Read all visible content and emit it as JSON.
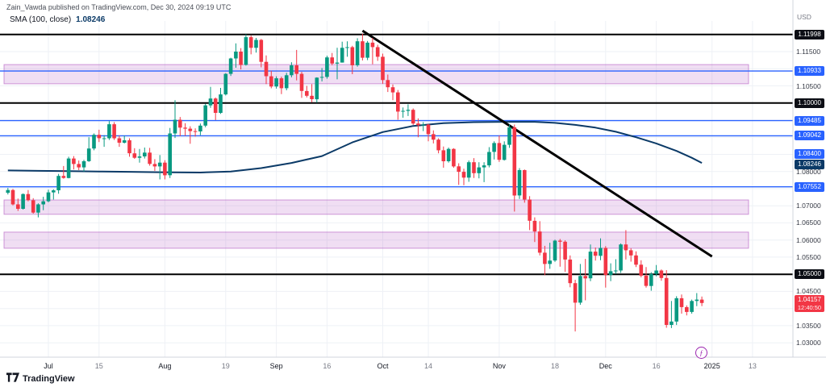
{
  "header": {
    "attribution": "Zain_Vawda published on TradingView.com, Dec 30, 2024 09:19 UTC",
    "currency_label": "USD"
  },
  "legend": {
    "indicator": "SMA (100, close)",
    "value": "1.08246"
  },
  "footer": {
    "logo_text": "TradingView"
  },
  "event": {
    "symbol": "ƒ"
  },
  "colors": {
    "up": "#089981",
    "down": "#f23645",
    "sma": "#0b3a67",
    "line_black": "#000000",
    "line_blue": "#2962ff",
    "band_fill": "rgba(186,104,200,0.22)",
    "band_border": "rgba(156,39,176,0.45)",
    "grid": "#eef1f6",
    "axis_separator": "#d1d4dc",
    "badge_red": "#f23645"
  },
  "chart_data": {
    "type": "candlestick",
    "ylim": [
      1.0258,
      1.123
    ],
    "price_ticks": [
      {
        "p": 1.115,
        "t": "1.11500"
      },
      {
        "p": 1.105,
        "t": "1.10500"
      },
      {
        "p": 1.08,
        "t": "1.08000"
      },
      {
        "p": 1.07,
        "t": "1.07000"
      },
      {
        "p": 1.065,
        "t": "1.06500"
      },
      {
        "p": 1.06,
        "t": "1.06000"
      },
      {
        "p": 1.055,
        "t": "1.05500"
      },
      {
        "p": 1.045,
        "t": "1.04500"
      },
      {
        "p": 1.035,
        "t": "1.03500"
      },
      {
        "p": 1.03,
        "t": "1.03000"
      }
    ],
    "price_badges": [
      {
        "p": 1.11998,
        "t": "1.11998",
        "type": "black"
      },
      {
        "p": 1.10933,
        "t": "1.10933",
        "type": "blue"
      },
      {
        "p": 1.1,
        "t": "1.10000",
        "type": "black"
      },
      {
        "p": 1.09485,
        "t": "1.09485",
        "type": "blue"
      },
      {
        "p": 1.09042,
        "t": "1.09042",
        "type": "blue"
      },
      {
        "p": 1.084,
        "t": "1.08400",
        "type": "blue",
        "dy": -5
      },
      {
        "p": 1.08246,
        "t": "1.08246",
        "type": "sma",
        "dy": 2
      },
      {
        "p": 1.07552,
        "t": "1.07552",
        "type": "blue"
      },
      {
        "p": 1.05,
        "t": "1.05000",
        "type": "black"
      }
    ],
    "horizontal_lines": [
      {
        "p": 1.11998,
        "c": "black"
      },
      {
        "p": 1.10933,
        "c": "blue"
      },
      {
        "p": 1.1,
        "c": "black"
      },
      {
        "p": 1.09485,
        "c": "blue"
      },
      {
        "p": 1.09042,
        "c": "blue"
      },
      {
        "p": 1.07552,
        "c": "blue"
      },
      {
        "p": 1.05,
        "c": "black"
      }
    ],
    "bands": [
      {
        "from": 1.1056,
        "to": 1.1112
      },
      {
        "from": 1.0675,
        "to": 1.0717
      },
      {
        "from": 1.0576,
        "to": 1.0623
      }
    ],
    "trendline": {
      "from_i": 70,
      "from_p": 1.1211,
      "to_i": 139,
      "to_p": 1.0552
    },
    "last_price": {
      "p": 1.04157,
      "t": "1.04157",
      "countdown": "12:40:50"
    },
    "time_ticks": [
      {
        "i": 8,
        "label": "Jul",
        "strong": true
      },
      {
        "i": 18,
        "label": "15"
      },
      {
        "i": 31,
        "label": "Aug",
        "strong": true
      },
      {
        "i": 43,
        "label": "19"
      },
      {
        "i": 53,
        "label": "Sep",
        "strong": true
      },
      {
        "i": 63,
        "label": "16"
      },
      {
        "i": 74,
        "label": "Oct",
        "strong": true
      },
      {
        "i": 83,
        "label": "14"
      },
      {
        "i": 97,
        "label": "Nov",
        "strong": true
      },
      {
        "i": 108,
        "label": "18"
      },
      {
        "i": 118,
        "label": "Dec",
        "strong": true
      },
      {
        "i": 128,
        "label": "16"
      },
      {
        "i": 139,
        "label": "2025",
        "strong": true
      },
      {
        "i": 147,
        "label": "13"
      }
    ],
    "sma": [
      [
        0,
        1.0803
      ],
      [
        6,
        1.0802
      ],
      [
        12,
        1.0801
      ],
      [
        18,
        1.08
      ],
      [
        24,
        1.0799
      ],
      [
        30,
        1.0798
      ],
      [
        38,
        1.0797
      ],
      [
        44,
        1.08
      ],
      [
        50,
        1.081
      ],
      [
        56,
        1.0825
      ],
      [
        62,
        1.0845
      ],
      [
        68,
        1.0885
      ],
      [
        74,
        1.0915
      ],
      [
        80,
        1.0933
      ],
      [
        86,
        1.0941
      ],
      [
        92,
        1.0944
      ],
      [
        98,
        1.0945
      ],
      [
        104,
        1.0945
      ],
      [
        108,
        1.0942
      ],
      [
        112,
        1.0936
      ],
      [
        116,
        1.0928
      ],
      [
        120,
        1.0916
      ],
      [
        124,
        1.09
      ],
      [
        128,
        1.0882
      ],
      [
        132,
        1.086
      ],
      [
        135,
        1.084
      ],
      [
        137,
        1.0825
      ]
    ],
    "candles": [
      [
        1.0738,
        1.0752,
        1.0733,
        1.0746
      ],
      [
        1.0746,
        1.0749,
        1.0701,
        1.0704
      ],
      [
        1.0704,
        1.0721,
        1.0685,
        1.0691
      ],
      [
        1.0691,
        1.0736,
        1.0689,
        1.0734
      ],
      [
        1.0734,
        1.0746,
        1.0713,
        1.0716
      ],
      [
        1.0716,
        1.0722,
        1.0677,
        1.068
      ],
      [
        1.068,
        1.0707,
        1.0666,
        1.0704
      ],
      [
        1.0704,
        1.0726,
        1.0687,
        1.0713
      ],
      [
        1.0713,
        1.0747,
        1.071,
        1.0739
      ],
      [
        1.0739,
        1.0748,
        1.0718,
        1.0745
      ],
      [
        1.0745,
        1.0793,
        1.0735,
        1.0787
      ],
      [
        1.0787,
        1.0816,
        1.0779,
        1.0781
      ],
      [
        1.0781,
        1.0843,
        1.078,
        1.0838
      ],
      [
        1.0838,
        1.0845,
        1.0806,
        1.0822
      ],
      [
        1.0822,
        1.0832,
        1.0804,
        1.0812
      ],
      [
        1.0812,
        1.0834,
        1.08,
        1.083
      ],
      [
        1.083,
        1.09,
        1.0828,
        1.0867
      ],
      [
        1.0867,
        1.0911,
        1.0862,
        1.0907
      ],
      [
        1.0907,
        1.0922,
        1.0886,
        1.0897
      ],
      [
        1.0897,
        1.0906,
        1.0872,
        1.0897
      ],
      [
        1.0897,
        1.0947,
        1.0892,
        1.0938
      ],
      [
        1.0938,
        1.0944,
        1.0892,
        1.0897
      ],
      [
        1.0897,
        1.0905,
        1.0872,
        1.0884
      ],
      [
        1.0884,
        1.0905,
        1.0882,
        1.0891
      ],
      [
        1.0891,
        1.0897,
        1.0843,
        1.0853
      ],
      [
        1.0853,
        1.0868,
        1.0837,
        1.084
      ],
      [
        1.084,
        1.0866,
        1.0826,
        1.0844
      ],
      [
        1.0844,
        1.087,
        1.0838,
        1.0855
      ],
      [
        1.0855,
        1.0869,
        1.0817,
        1.0822
      ],
      [
        1.0822,
        1.0836,
        1.0802,
        1.0815
      ],
      [
        1.0815,
        1.0848,
        1.0777,
        1.0826
      ],
      [
        1.0826,
        1.0833,
        1.0777,
        1.0789
      ],
      [
        1.0789,
        1.0927,
        1.0781,
        1.0911
      ],
      [
        1.0911,
        1.1008,
        1.0898,
        1.0951
      ],
      [
        1.0951,
        1.0959,
        1.0903,
        1.0928
      ],
      [
        1.0928,
        1.0941,
        1.0904,
        1.0925
      ],
      [
        1.0925,
        1.0932,
        1.0881,
        1.0918
      ],
      [
        1.0918,
        1.0926,
        1.0902,
        1.0917
      ],
      [
        1.0917,
        1.094,
        1.0906,
        1.0934
      ],
      [
        1.0934,
        1.0998,
        1.0929,
        1.0993
      ],
      [
        1.0993,
        1.1047,
        1.0986,
        1.1013
      ],
      [
        1.1013,
        1.1016,
        1.095,
        1.0971
      ],
      [
        1.0971,
        1.1044,
        1.0968,
        1.1025
      ],
      [
        1.1025,
        1.1087,
        1.1022,
        1.1085
      ],
      [
        1.1085,
        1.1132,
        1.1079,
        1.113
      ],
      [
        1.113,
        1.1174,
        1.1103,
        1.115
      ],
      [
        1.115,
        1.116,
        1.1098,
        1.1111
      ],
      [
        1.1111,
        1.12,
        1.1109,
        1.1192
      ],
      [
        1.1192,
        1.1197,
        1.1142,
        1.1161
      ],
      [
        1.1161,
        1.119,
        1.1147,
        1.1184
      ],
      [
        1.1184,
        1.1187,
        1.1104,
        1.112
      ],
      [
        1.112,
        1.1139,
        1.1055,
        1.1078
      ],
      [
        1.1078,
        1.1094,
        1.1043,
        1.1048
      ],
      [
        1.1048,
        1.1078,
        1.1042,
        1.1072
      ],
      [
        1.1072,
        1.1077,
        1.1026,
        1.1043
      ],
      [
        1.1043,
        1.1088,
        1.1037,
        1.1081
      ],
      [
        1.1081,
        1.1119,
        1.1075,
        1.111
      ],
      [
        1.111,
        1.1155,
        1.1066,
        1.1085
      ],
      [
        1.1085,
        1.1091,
        1.1015,
        1.1035
      ],
      [
        1.1035,
        1.105,
        1.1016,
        1.1021
      ],
      [
        1.1021,
        1.1055,
        1.1002,
        1.1011
      ],
      [
        1.1011,
        1.1075,
        1.1001,
        1.1074
      ],
      [
        1.1074,
        1.1102,
        1.1063,
        1.1076
      ],
      [
        1.1076,
        1.1138,
        1.1071,
        1.1133
      ],
      [
        1.1133,
        1.1146,
        1.111,
        1.1115
      ],
      [
        1.1115,
        1.1161,
        1.1069,
        1.1118
      ],
      [
        1.1118,
        1.1179,
        1.1118,
        1.1161
      ],
      [
        1.1161,
        1.118,
        1.1135,
        1.1163
      ],
      [
        1.1163,
        1.1167,
        1.1084,
        1.111
      ],
      [
        1.111,
        1.1189,
        1.1106,
        1.118
      ],
      [
        1.118,
        1.1202,
        1.1124,
        1.1132
      ],
      [
        1.1132,
        1.1181,
        1.1125,
        1.1176
      ],
      [
        1.1176,
        1.119,
        1.1113,
        1.1163
      ],
      [
        1.1163,
        1.117,
        1.1123,
        1.1135
      ],
      [
        1.1135,
        1.1144,
        1.1056,
        1.1067
      ],
      [
        1.1067,
        1.1083,
        1.1032,
        1.1046
      ],
      [
        1.1046,
        1.1054,
        1.1008,
        1.1031
      ],
      [
        1.1031,
        1.1038,
        1.0951,
        1.0975
      ],
      [
        1.0975,
        1.0987,
        1.0957,
        1.0977
      ],
      [
        1.0977,
        1.0996,
        1.0962,
        1.098
      ],
      [
        1.098,
        1.0984,
        1.0936,
        1.094
      ],
      [
        1.094,
        1.0955,
        1.09,
        1.0935
      ],
      [
        1.0935,
        1.0944,
        1.0918,
        1.0937
      ],
      [
        1.0937,
        1.0939,
        1.0888,
        1.0909
      ],
      [
        1.0909,
        1.092,
        1.0882,
        1.0893
      ],
      [
        1.0893,
        1.0897,
        1.0853,
        1.0862
      ],
      [
        1.0862,
        1.0873,
        1.0811,
        1.083
      ],
      [
        1.083,
        1.087,
        1.0826,
        1.0866
      ],
      [
        1.0866,
        1.0868,
        1.0811,
        1.0815
      ],
      [
        1.0815,
        1.0824,
        1.0761,
        1.0799
      ],
      [
        1.0799,
        1.0808,
        1.076,
        1.0782
      ],
      [
        1.0782,
        1.0832,
        1.077,
        1.0827
      ],
      [
        1.0827,
        1.0839,
        1.0781,
        1.0795
      ],
      [
        1.0795,
        1.0827,
        1.078,
        1.0812
      ],
      [
        1.0812,
        1.0827,
        1.0769,
        1.0818
      ],
      [
        1.0818,
        1.0871,
        1.0812,
        1.0857
      ],
      [
        1.0857,
        1.0888,
        1.0835,
        1.0883
      ],
      [
        1.0883,
        1.0905,
        1.0828,
        1.0834
      ],
      [
        1.0834,
        1.0888,
        1.0832,
        1.0878
      ],
      [
        1.0878,
        1.0937,
        1.0869,
        1.0929
      ],
      [
        1.0929,
        1.0937,
        1.0683,
        1.073
      ],
      [
        1.073,
        1.081,
        1.072,
        1.0804
      ],
      [
        1.0804,
        1.0806,
        1.0709,
        1.0718
      ],
      [
        1.0718,
        1.0728,
        1.0629,
        1.0656
      ],
      [
        1.0656,
        1.0666,
        1.0594,
        1.0625
      ],
      [
        1.0625,
        1.0655,
        1.0555,
        1.0563
      ],
      [
        1.0563,
        1.0583,
        1.0497,
        1.053
      ],
      [
        1.053,
        1.0592,
        1.0516,
        1.054
      ],
      [
        1.054,
        1.0601,
        1.0536,
        1.0598
      ],
      [
        1.0598,
        1.0603,
        1.0522,
        1.0595
      ],
      [
        1.0595,
        1.0599,
        1.0507,
        1.0543
      ],
      [
        1.0543,
        1.0555,
        1.0462,
        1.0474
      ],
      [
        1.0474,
        1.0484,
        1.0333,
        1.0417
      ],
      [
        1.0417,
        1.053,
        1.0411,
        1.0495
      ],
      [
        1.0495,
        1.0545,
        1.0424,
        1.0488
      ],
      [
        1.0488,
        1.0587,
        1.048,
        1.0566
      ],
      [
        1.0566,
        1.0578,
        1.054,
        1.0554
      ],
      [
        1.0554,
        1.0605,
        1.0541,
        1.0577
      ],
      [
        1.0577,
        1.0582,
        1.0461,
        1.0498
      ],
      [
        1.0498,
        1.0532,
        1.048,
        1.0509
      ],
      [
        1.0509,
        1.0544,
        1.0501,
        1.0511
      ],
      [
        1.0511,
        1.059,
        1.0504,
        1.0587
      ],
      [
        1.0587,
        1.0629,
        1.0543,
        1.057
      ],
      [
        1.057,
        1.0576,
        1.0537,
        1.0555
      ],
      [
        1.0555,
        1.0567,
        1.0521,
        1.0528
      ],
      [
        1.0528,
        1.0541,
        1.0491,
        1.0496
      ],
      [
        1.0496,
        1.0521,
        1.0461,
        1.0466
      ],
      [
        1.0466,
        1.0506,
        1.0452,
        1.0501
      ],
      [
        1.0501,
        1.0527,
        1.0494,
        1.0511
      ],
      [
        1.0511,
        1.0514,
        1.0481,
        1.0489
      ],
      [
        1.0489,
        1.0512,
        1.0344,
        1.0352
      ],
      [
        1.0352,
        1.0422,
        1.0343,
        1.0362
      ],
      [
        1.0362,
        1.0436,
        1.0352,
        1.043
      ],
      [
        1.043,
        1.0441,
        1.0385,
        1.0404
      ],
      [
        1.0404,
        1.0409,
        1.038,
        1.039
      ],
      [
        1.039,
        1.0426,
        1.0385,
        1.0422
      ],
      [
        1.0422,
        1.0445,
        1.0407,
        1.0426
      ],
      [
        1.0426,
        1.0435,
        1.0407,
        1.0416
      ]
    ]
  }
}
